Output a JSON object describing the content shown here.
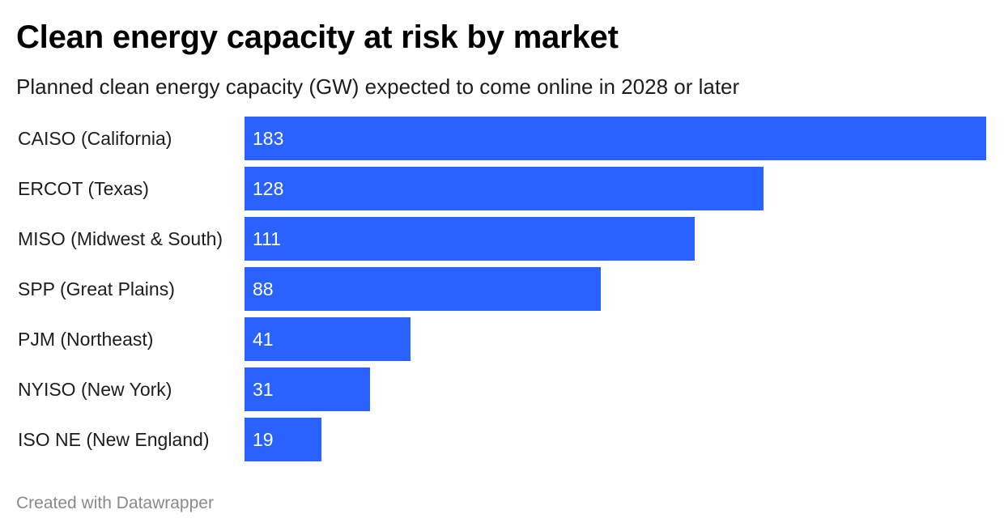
{
  "chart_data": {
    "type": "bar",
    "orientation": "horizontal",
    "title": "Clean energy capacity at risk by market",
    "subtitle": "Planned clean energy capacity (GW) expected to come online in 2028 or later",
    "categories": [
      "CAISO (California)",
      "ERCOT (Texas)",
      "MISO (Midwest & South)",
      "SPP (Great Plains)",
      "PJM (Northeast)",
      "NYISO (New York)",
      "ISO NE (New England)"
    ],
    "values": [
      183,
      128,
      111,
      88,
      41,
      31,
      19
    ],
    "value_labels": [
      "183",
      "128",
      "111",
      "88",
      "41",
      "31",
      "19"
    ],
    "xlim": [
      0,
      183
    ],
    "grid": false,
    "legend": "none",
    "bar_color": "#2962ff"
  },
  "footer": {
    "credit": "Created with Datawrapper"
  },
  "colors": {
    "bar": "#2962ff",
    "value_text": "#ffffff",
    "label_text": "#1d1d1d",
    "footer_text": "#8a8a8a"
  }
}
